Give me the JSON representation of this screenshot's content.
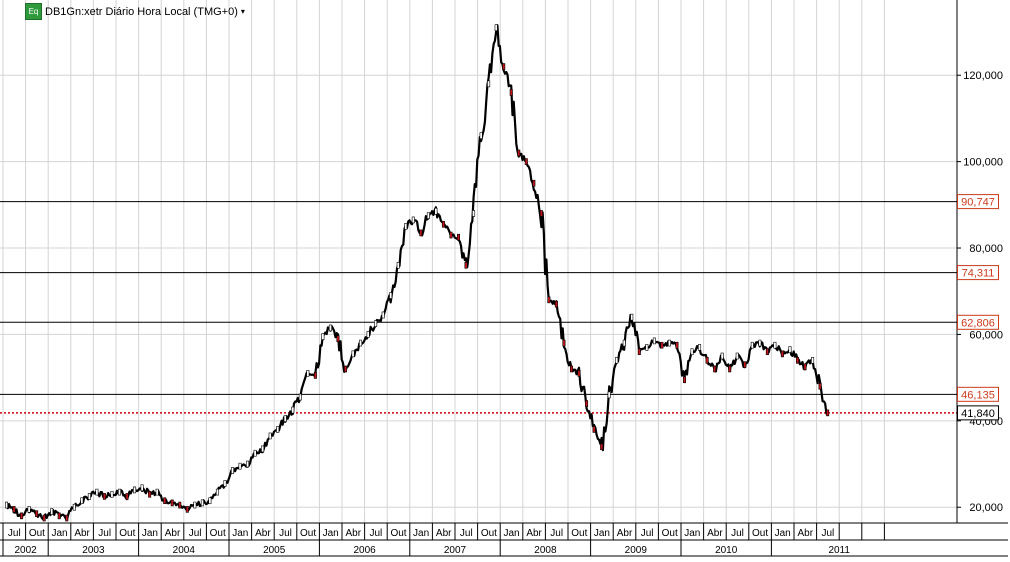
{
  "header": {
    "badge": "Eq",
    "title": "DB1Gn:xetr Diário Hora Local (TMG+0)",
    "caret": "▾"
  },
  "colors": {
    "price": "#000000",
    "down_body": "#c0141a",
    "label_red": "#cc3a1a",
    "grid": "#d4d4d4",
    "current_line": "#d0000a"
  },
  "chart_data": {
    "type": "line",
    "title": "DB1Gn:xetr Diário Hora Local (TMG+0)",
    "xlabel": "",
    "ylabel": "",
    "x_range": [
      "2002-07",
      "2011-09"
    ],
    "ylim": [
      16000,
      137000
    ],
    "y_ticks": [
      20000,
      40000,
      60000,
      80000,
      100000,
      120000
    ],
    "y_tick_labels": [
      "20,000",
      "40,000",
      "60,000",
      "80,000",
      "100,000",
      "120,000"
    ],
    "grid": true,
    "months": [
      "Jul",
      "Out",
      "Jan",
      "Abr",
      "Jul",
      "Out",
      "Jan",
      "Abr",
      "Jul",
      "Out",
      "Jan",
      "Abr",
      "Jul",
      "Out",
      "Jan",
      "Abr",
      "Jul",
      "Out",
      "Jan",
      "Abr",
      "Jul",
      "Out",
      "Jan",
      "Abr",
      "Jul",
      "Out",
      "Jan",
      "Abr",
      "Jul",
      "Out",
      "Jan",
      "Abr",
      "Jul",
      "Out",
      "Jan",
      "Abr",
      "Jul",
      "",
      "",
      ""
    ],
    "years": [
      {
        "label": "2002",
        "start": 0,
        "end": 2
      },
      {
        "label": "2003",
        "start": 2,
        "end": 6
      },
      {
        "label": "2004",
        "start": 6,
        "end": 10
      },
      {
        "label": "2005",
        "start": 10,
        "end": 14
      },
      {
        "label": "2006",
        "start": 14,
        "end": 18
      },
      {
        "label": "2007",
        "start": 18,
        "end": 22
      },
      {
        "label": "2008",
        "start": 22,
        "end": 26
      },
      {
        "label": "2009",
        "start": 26,
        "end": 30
      },
      {
        "label": "2010",
        "start": 30,
        "end": 34
      },
      {
        "label": "2011",
        "start": 34,
        "end": 40
      }
    ],
    "series": [
      {
        "x": [
          "2002-07",
          "2002-08",
          "2002-09",
          "2002-10",
          "2002-11",
          "2002-12",
          "2003-01",
          "2003-02",
          "2003-03",
          "2003-04",
          "2003-05",
          "2003-06",
          "2003-07",
          "2003-08",
          "2003-09",
          "2003-10",
          "2003-11",
          "2003-12",
          "2004-01",
          "2004-02",
          "2004-03",
          "2004-04",
          "2004-05",
          "2004-06",
          "2004-07",
          "2004-08",
          "2004-09",
          "2004-10",
          "2004-11",
          "2004-12",
          "2005-01",
          "2005-02",
          "2005-03",
          "2005-04",
          "2005-05",
          "2005-06",
          "2005-07",
          "2005-08",
          "2005-09",
          "2005-10",
          "2005-11",
          "2005-12",
          "2006-01",
          "2006-02",
          "2006-03",
          "2006-04",
          "2006-05",
          "2006-06",
          "2006-07",
          "2006-08",
          "2006-09",
          "2006-10",
          "2006-11",
          "2006-12",
          "2007-01",
          "2007-02",
          "2007-03",
          "2007-04",
          "2007-05",
          "2007-06",
          "2007-07",
          "2007-08",
          "2007-09",
          "2007-10",
          "2007-11",
          "2007-12",
          "2008-01",
          "2008-02",
          "2008-03",
          "2008-04",
          "2008-05",
          "2008-06",
          "2008-07",
          "2008-08",
          "2008-09",
          "2008-10",
          "2008-11",
          "2008-12",
          "2009-01",
          "2009-02",
          "2009-03",
          "2009-04",
          "2009-05",
          "2009-06",
          "2009-07",
          "2009-08",
          "2009-09",
          "2009-10",
          "2009-11",
          "2009-12",
          "2010-01",
          "2010-02",
          "2010-03",
          "2010-04",
          "2010-05",
          "2010-06",
          "2010-07",
          "2010-08",
          "2010-09",
          "2010-10",
          "2010-11",
          "2010-12",
          "2011-01",
          "2011-02",
          "2011-03",
          "2011-04",
          "2011-05",
          "2011-06",
          "2011-07",
          "2011-08"
        ],
        "values": [
          20500,
          19500,
          18000,
          19500,
          18500,
          17500,
          19000,
          18000,
          17500,
          20000,
          21500,
          22500,
          23500,
          22500,
          23000,
          23500,
          22500,
          24000,
          24500,
          23000,
          23500,
          21500,
          21000,
          20500,
          19500,
          20500,
          21000,
          21500,
          23500,
          25500,
          28500,
          29500,
          30000,
          32500,
          33500,
          36500,
          38000,
          40500,
          42500,
          45500,
          51000,
          50500,
          59500,
          61500,
          59000,
          52000,
          55500,
          58000,
          60000,
          62500,
          64500,
          69000,
          76000,
          85000,
          86500,
          83500,
          87500,
          88500,
          85500,
          83000,
          82500,
          76000,
          88000,
          106000,
          118000,
          131000,
          122000,
          116000,
          102000,
          100000,
          95000,
          88000,
          68000,
          67000,
          58000,
          52000,
          51000,
          44000,
          38000,
          34000,
          46000,
          54000,
          58000,
          64000,
          56000,
          57000,
          58500,
          57500,
          58000,
          57500,
          49500,
          56000,
          57000,
          54000,
          52000,
          55000,
          52000,
          55000,
          53000,
          57500,
          58000,
          56000,
          57500,
          55500,
          56500,
          54000,
          52500,
          54000,
          48000,
          41840
        ]
      }
    ],
    "horizontal_lines": [
      {
        "value": 90747,
        "label": "90,747"
      },
      {
        "value": 74311,
        "label": "74,311"
      },
      {
        "value": 62806,
        "label": "62,806"
      },
      {
        "value": 46135,
        "label": "46,135"
      }
    ],
    "current_price": {
      "value": 41840,
      "label": "41,840"
    }
  }
}
